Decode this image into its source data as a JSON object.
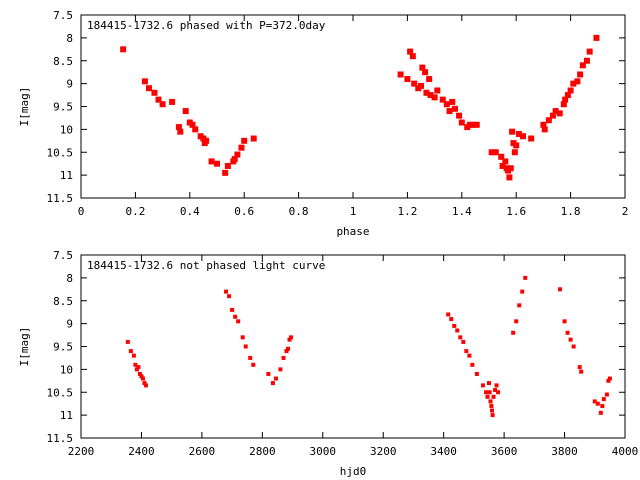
{
  "chart_data": [
    {
      "type": "scatter",
      "title": "184415-1732.6 phased with P=372.0day",
      "xlabel": "phase",
      "ylabel": "I[mag]",
      "xlim": [
        0,
        2
      ],
      "ylim": [
        7.5,
        11.5
      ],
      "y_inverted": true,
      "xticks": [
        "0",
        "0.2",
        "0.4",
        "0.6",
        "0.8",
        "1",
        "1.2",
        "1.4",
        "1.6",
        "1.8",
        "2"
      ],
      "yticks": [
        "7.5",
        "8",
        "8.5",
        "9",
        "9.5",
        "10",
        "10.5",
        "11",
        "11.5"
      ],
      "marker_color": "#ff0000",
      "grid": false,
      "series": [
        {
          "x": [
            0.155,
            0.235,
            0.25,
            0.27,
            0.285,
            0.3,
            0.335,
            0.36,
            0.365,
            0.385,
            0.4,
            0.41,
            0.42,
            0.44,
            0.45,
            0.455,
            0.46,
            0.48,
            0.5,
            0.53,
            0.54,
            0.56,
            0.565,
            0.575,
            0.59,
            0.6,
            0.635,
            1.175,
            1.2,
            1.21,
            1.22,
            1.225,
            1.24,
            1.25,
            1.255,
            1.265,
            1.27,
            1.28,
            1.285,
            1.3,
            1.31,
            1.33,
            1.345,
            1.355,
            1.365,
            1.375,
            1.39,
            1.4,
            1.42,
            1.43,
            1.44,
            1.455,
            1.51,
            1.525,
            1.545,
            1.55,
            1.56,
            1.565,
            1.57,
            1.575,
            1.58,
            1.585,
            1.59,
            1.595,
            1.6,
            1.61,
            1.625,
            1.655,
            1.7,
            1.705,
            1.72,
            1.735,
            1.745,
            1.76,
            1.775,
            1.78,
            1.79,
            1.8,
            1.81,
            1.825,
            1.835,
            1.845,
            1.86,
            1.87,
            1.895
          ],
          "y": [
            8.25,
            8.95,
            9.1,
            9.2,
            9.35,
            9.45,
            9.4,
            9.95,
            10.05,
            9.6,
            9.85,
            9.9,
            10.0,
            10.15,
            10.2,
            10.3,
            10.25,
            10.7,
            10.75,
            10.95,
            10.8,
            10.7,
            10.65,
            10.55,
            10.4,
            10.25,
            10.2,
            8.8,
            8.9,
            8.3,
            8.4,
            9.0,
            9.1,
            9.05,
            8.65,
            8.75,
            9.2,
            8.9,
            9.25,
            9.3,
            9.15,
            9.35,
            9.45,
            9.6,
            9.4,
            9.55,
            9.7,
            9.85,
            9.95,
            9.9,
            9.9,
            9.9,
            10.5,
            10.5,
            10.6,
            10.8,
            10.7,
            10.85,
            10.9,
            11.05,
            10.85,
            10.05,
            10.3,
            10.5,
            10.35,
            10.1,
            10.15,
            10.2,
            9.9,
            10.0,
            9.8,
            9.7,
            9.6,
            9.65,
            9.45,
            9.35,
            9.25,
            9.15,
            9.0,
            8.95,
            8.8,
            8.6,
            8.5,
            8.3,
            8.0
          ]
        }
      ]
    },
    {
      "type": "scatter",
      "title": "184415-1732.6 not phased light curve",
      "xlabel": "hjd0",
      "ylabel": "I[mag]",
      "xlim": [
        2200,
        4000
      ],
      "ylim": [
        7.5,
        11.5
      ],
      "y_inverted": true,
      "xticks": [
        "2200",
        "2400",
        "2600",
        "2800",
        "3000",
        "3200",
        "3400",
        "3600",
        "3800",
        "4000"
      ],
      "yticks": [
        "7.5",
        "8",
        "8.5",
        "9",
        "9.5",
        "10",
        "10.5",
        "11",
        "11.5"
      ],
      "marker_color": "#ff0000",
      "grid": false,
      "series": [
        {
          "x": [
            2355,
            2365,
            2375,
            2380,
            2385,
            2390,
            2395,
            2400,
            2405,
            2410,
            2415,
            2680,
            2690,
            2700,
            2710,
            2720,
            2735,
            2745,
            2760,
            2770,
            2820,
            2835,
            2845,
            2860,
            2870,
            2880,
            2885,
            2890,
            2895,
            3415,
            3425,
            3435,
            3445,
            3455,
            3465,
            3475,
            3485,
            3495,
            3510,
            3530,
            3540,
            3545,
            3550,
            3552,
            3555,
            3558,
            3560,
            3562,
            3565,
            3570,
            3575,
            3580,
            3630,
            3640,
            3650,
            3660,
            3670,
            3785,
            3800,
            3810,
            3820,
            3830,
            3850,
            3855,
            3900,
            3910,
            3920,
            3925,
            3930,
            3940,
            3945,
            3950
          ],
          "y": [
            9.4,
            9.6,
            9.7,
            9.9,
            10.0,
            9.95,
            10.1,
            10.15,
            10.2,
            10.3,
            10.35,
            8.3,
            8.4,
            8.7,
            8.85,
            8.95,
            9.3,
            9.5,
            9.75,
            9.9,
            10.1,
            10.3,
            10.2,
            10.0,
            9.75,
            9.6,
            9.55,
            9.35,
            9.3,
            8.8,
            8.9,
            9.05,
            9.15,
            9.3,
            9.4,
            9.6,
            9.7,
            9.9,
            10.1,
            10.35,
            10.5,
            10.6,
            10.3,
            10.5,
            10.7,
            10.8,
            10.9,
            11.0,
            10.6,
            10.45,
            10.35,
            10.5,
            9.2,
            8.95,
            8.6,
            8.3,
            8.0,
            8.25,
            8.95,
            9.2,
            9.35,
            9.5,
            9.95,
            10.05,
            10.7,
            10.75,
            10.95,
            10.8,
            10.65,
            10.55,
            10.25,
            10.2
          ]
        }
      ]
    }
  ]
}
